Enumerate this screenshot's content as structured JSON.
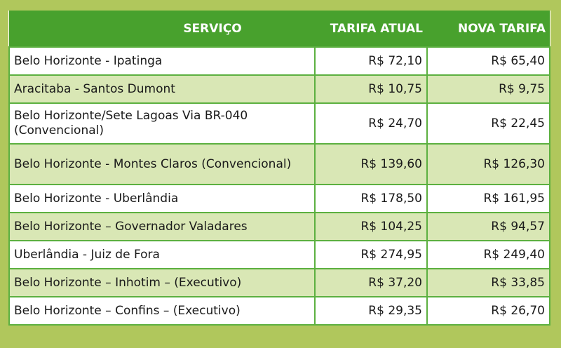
{
  "headers": [
    "SERVIÇO",
    "TARIFA ATUAL",
    "NOVA TARIFA"
  ],
  "rows": [
    {
      "servico": "Belo Horizonte - Ipatinga",
      "atual": "R$ 72,10",
      "nova": "R$ 65,40"
    },
    {
      "servico": "Aracitaba - Santos Dumont",
      "atual": "R$ 10,75",
      "nova": "R$ 9,75"
    },
    {
      "servico": "Belo Horizonte/Sete Lagoas Via BR-040 (Convencional)",
      "atual": "R$ 24,70",
      "nova": "R$ 22,45"
    },
    {
      "servico": "Belo Horizonte - Montes Claros (Convencional)",
      "atual": "R$ 139,60",
      "nova": "R$ 126,30"
    },
    {
      "servico": "Belo Horizonte - Uberlândia",
      "atual": "R$ 178,50",
      "nova": "R$ 161,95"
    },
    {
      "servico": "Belo Horizonte – Governador Valadares",
      "atual": "R$ 104,25",
      "nova": "R$ 94,57"
    },
    {
      "servico": "Uberlândia - Juiz de Fora",
      "atual": "R$ 274,95",
      "nova": "R$ 249,40"
    },
    {
      "servico": "Belo Horizonte – Inhotim – (Executivo)",
      "atual": "R$ 37,20",
      "nova": "R$ 33,85"
    },
    {
      "servico": "Belo Horizonte – Confins – (Executivo)",
      "atual": "R$ 29,35",
      "nova": "R$ 26,70"
    }
  ],
  "colors": {
    "background": "#b0c75c",
    "header": "#48a12d",
    "alt_row": "#d9e7b5",
    "border": "#5cb040"
  }
}
